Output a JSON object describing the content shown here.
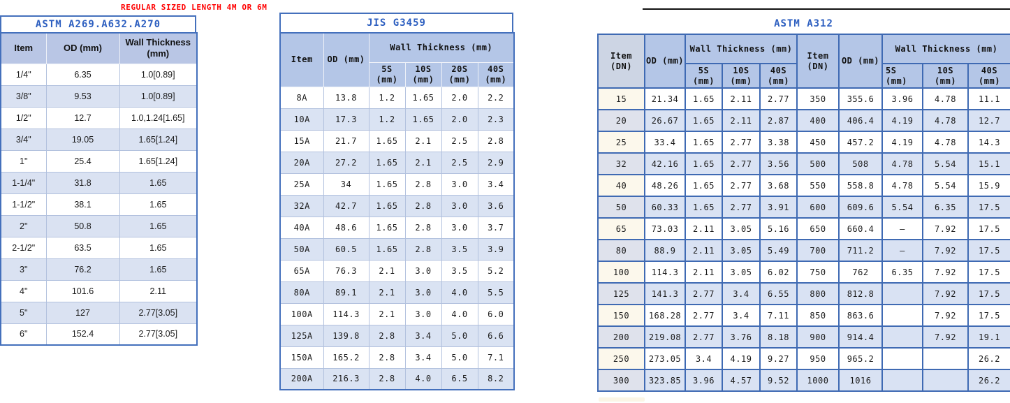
{
  "page_note": {
    "text": "REGULAR SIZED LENGTH 4M OR 6M",
    "color": "#ff0000"
  },
  "colors": {
    "title_blue": "#2d5fc0",
    "outer_border_blue": "#4470bc",
    "strong_grid_blue": "#3f6ab3",
    "header_fill": "#b4c6e7",
    "alt_row_fill": "#dae3f3",
    "first_col_cream": "#fcf8ec",
    "note_red": "#ff0000"
  },
  "astm_a269_table": {
    "title": "ASTM A269.A632.A270",
    "columns": [
      "Item",
      "OD (mm)",
      "Wall Thickness\n(mm)"
    ],
    "rows": [
      [
        "1/4\"",
        "6.35",
        "1.0[0.89]"
      ],
      [
        "3/8\"",
        "9.53",
        "1.0[0.89]"
      ],
      [
        "1/2\"",
        "12.7",
        "1.0,1.24[1.65]"
      ],
      [
        "3/4\"",
        "19.05",
        "1.65[1.24]"
      ],
      [
        "1\"",
        "25.4",
        "1.65[1.24]"
      ],
      [
        "1-1/4\"",
        "31.8",
        "1.65"
      ],
      [
        "1-1/2\"",
        "38.1",
        "1.65"
      ],
      [
        "2\"",
        "50.8",
        "1.65"
      ],
      [
        "2-1/2\"",
        "63.5",
        "1.65"
      ],
      [
        "3\"",
        "76.2",
        "1.65"
      ],
      [
        "4\"",
        "101.6",
        "2.11"
      ],
      [
        "5\"",
        "127",
        "2.77[3.05]"
      ],
      [
        "6\"",
        "152.4",
        "2.77[3.05]"
      ]
    ]
  },
  "jis_g3459_table": {
    "title": "JIS G3459",
    "header": {
      "item": "Item",
      "od": "OD (mm)",
      "wall_group": "Wall Thickness (mm)",
      "sub_cols": [
        "5S\n(mm)",
        "10S\n(mm)",
        "20S\n(mm)",
        "40S\n(mm)"
      ]
    },
    "rows": [
      [
        "8A",
        "13.8",
        "1.2",
        "1.65",
        "2.0",
        "2.2"
      ],
      [
        "10A",
        "17.3",
        "1.2",
        "1.65",
        "2.0",
        "2.3"
      ],
      [
        "15A",
        "21.7",
        "1.65",
        "2.1",
        "2.5",
        "2.8"
      ],
      [
        "20A",
        "27.2",
        "1.65",
        "2.1",
        "2.5",
        "2.9"
      ],
      [
        "25A",
        "34",
        "1.65",
        "2.8",
        "3.0",
        "3.4"
      ],
      [
        "32A",
        "42.7",
        "1.65",
        "2.8",
        "3.0",
        "3.6"
      ],
      [
        "40A",
        "48.6",
        "1.65",
        "2.8",
        "3.0",
        "3.7"
      ],
      [
        "50A",
        "60.5",
        "1.65",
        "2.8",
        "3.5",
        "3.9"
      ],
      [
        "65A",
        "76.3",
        "2.1",
        "3.0",
        "3.5",
        "5.2"
      ],
      [
        "80A",
        "89.1",
        "2.1",
        "3.0",
        "4.0",
        "5.5"
      ],
      [
        "100A",
        "114.3",
        "2.1",
        "3.0",
        "4.0",
        "6.0"
      ],
      [
        "125A",
        "139.8",
        "2.8",
        "3.4",
        "5.0",
        "6.6"
      ],
      [
        "150A",
        "165.2",
        "2.8",
        "3.4",
        "5.0",
        "7.1"
      ],
      [
        "200A",
        "216.3",
        "2.8",
        "4.0",
        "6.5",
        "8.2"
      ]
    ]
  },
  "astm_a312_table": {
    "title": "ASTM A312",
    "left_half_header": {
      "item": "Item\n(DN)",
      "od": "OD (mm)",
      "wall_group": "Wall Thickness (mm)",
      "sub_cols": [
        "5S\n(mm)",
        "10S\n(mm)",
        "40S\n(mm)"
      ]
    },
    "right_half_header": {
      "item": "Item\n(DN)",
      "od": "OD (mm)",
      "wall_group": "Wall Thickness (mm)",
      "sub_cols": [
        "5S (mm)",
        "10S\n(mm)",
        "40S\n(mm)"
      ]
    },
    "rows": [
      [
        "15",
        "21.34",
        "1.65",
        "2.11",
        "2.77",
        "350",
        "355.6",
        "3.96",
        "4.78",
        "11.1"
      ],
      [
        "20",
        "26.67",
        "1.65",
        "2.11",
        "2.87",
        "400",
        "406.4",
        "4.19",
        "4.78",
        "12.7"
      ],
      [
        "25",
        "33.4",
        "1.65",
        "2.77",
        "3.38",
        "450",
        "457.2",
        "4.19",
        "4.78",
        "14.3"
      ],
      [
        "32",
        "42.16",
        "1.65",
        "2.77",
        "3.56",
        "500",
        "508",
        "4.78",
        "5.54",
        "15.1"
      ],
      [
        "40",
        "48.26",
        "1.65",
        "2.77",
        "3.68",
        "550",
        "558.8",
        "4.78",
        "5.54",
        "15.9"
      ],
      [
        "50",
        "60.33",
        "1.65",
        "2.77",
        "3.91",
        "600",
        "609.6",
        "5.54",
        "6.35",
        "17.5"
      ],
      [
        "65",
        "73.03",
        "2.11",
        "3.05",
        "5.16",
        "650",
        "660.4",
        "–",
        "7.92",
        "17.5"
      ],
      [
        "80",
        "88.9",
        "2.11",
        "3.05",
        "5.49",
        "700",
        "711.2",
        "–",
        "7.92",
        "17.5"
      ],
      [
        "100",
        "114.3",
        "2.11",
        "3.05",
        "6.02",
        "750",
        "762",
        "6.35",
        "7.92",
        "17.5"
      ],
      [
        "125",
        "141.3",
        "2.77",
        "3.4",
        "6.55",
        "800",
        "812.8",
        "",
        "7.92",
        "17.5"
      ],
      [
        "150",
        "168.28",
        "2.77",
        "3.4",
        "7.11",
        "850",
        "863.6",
        "",
        "7.92",
        "17.5"
      ],
      [
        "200",
        "219.08",
        "2.77",
        "3.76",
        "8.18",
        "900",
        "914.4",
        "",
        "7.92",
        "19.1"
      ],
      [
        "250",
        "273.05",
        "3.4",
        "4.19",
        "9.27",
        "950",
        "965.2",
        "",
        "",
        "26.2"
      ],
      [
        "300",
        "323.85",
        "3.96",
        "4.57",
        "9.52",
        "1000",
        "1016",
        "",
        "",
        "26.2"
      ]
    ]
  }
}
